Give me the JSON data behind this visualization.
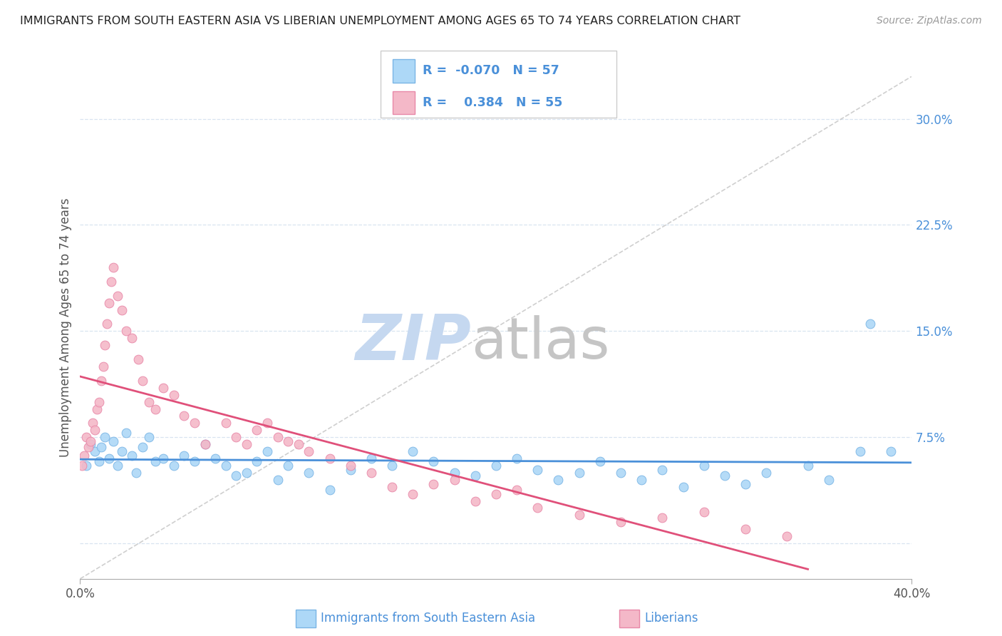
{
  "title": "IMMIGRANTS FROM SOUTH EASTERN ASIA VS LIBERIAN UNEMPLOYMENT AMONG AGES 65 TO 74 YEARS CORRELATION CHART",
  "source": "Source: ZipAtlas.com",
  "ylabel": "Unemployment Among Ages 65 to 74 years",
  "xlim": [
    0.0,
    40.0
  ],
  "ylim": [
    -2.5,
    33.0
  ],
  "y_ticks_right": [
    0.0,
    7.5,
    15.0,
    22.5,
    30.0
  ],
  "y_tick_labels_right": [
    "",
    "7.5%",
    "15.0%",
    "22.5%",
    "30.0%"
  ],
  "legend_r1": "-0.070",
  "legend_n1": "57",
  "legend_r2": "0.384",
  "legend_n2": "55",
  "series1_color": "#add8f7",
  "series1_edge": "#7ab5e5",
  "series2_color": "#f4b8c8",
  "series2_edge": "#e888a8",
  "trend1_color": "#4a90d9",
  "trend2_color": "#e0507a",
  "diagonal_color": "#bbbbbb",
  "watermark_zip_color": "#c5d8f0",
  "watermark_atlas_color": "#c5c5c5",
  "background_color": "#ffffff",
  "grid_color": "#d8e4f0",
  "series1_x": [
    0.3,
    0.5,
    0.7,
    0.9,
    1.0,
    1.2,
    1.4,
    1.6,
    1.8,
    2.0,
    2.2,
    2.5,
    2.7,
    3.0,
    3.3,
    3.6,
    4.0,
    4.5,
    5.0,
    5.5,
    6.0,
    6.5,
    7.0,
    7.5,
    8.0,
    8.5,
    9.0,
    9.5,
    10.0,
    11.0,
    12.0,
    13.0,
    14.0,
    15.0,
    16.0,
    17.0,
    18.0,
    19.0,
    20.0,
    21.0,
    22.0,
    23.0,
    24.0,
    25.0,
    26.0,
    27.0,
    28.0,
    29.0,
    30.0,
    31.0,
    32.0,
    33.0,
    35.0,
    36.0,
    37.5,
    38.0,
    39.0
  ],
  "series1_y": [
    5.5,
    7.0,
    6.5,
    5.8,
    6.8,
    7.5,
    6.0,
    7.2,
    5.5,
    6.5,
    7.8,
    6.2,
    5.0,
    6.8,
    7.5,
    5.8,
    6.0,
    5.5,
    6.2,
    5.8,
    7.0,
    6.0,
    5.5,
    4.8,
    5.0,
    5.8,
    6.5,
    4.5,
    5.5,
    5.0,
    3.8,
    5.2,
    6.0,
    5.5,
    6.5,
    5.8,
    5.0,
    4.8,
    5.5,
    6.0,
    5.2,
    4.5,
    5.0,
    5.8,
    5.0,
    4.5,
    5.2,
    4.0,
    5.5,
    4.8,
    4.2,
    5.0,
    5.5,
    4.5,
    6.5,
    15.5,
    6.5
  ],
  "series2_x": [
    0.1,
    0.2,
    0.3,
    0.4,
    0.5,
    0.6,
    0.7,
    0.8,
    0.9,
    1.0,
    1.1,
    1.2,
    1.3,
    1.4,
    1.5,
    1.6,
    1.8,
    2.0,
    2.2,
    2.5,
    2.8,
    3.0,
    3.3,
    3.6,
    4.0,
    4.5,
    5.0,
    5.5,
    6.0,
    7.0,
    7.5,
    8.0,
    8.5,
    9.0,
    9.5,
    10.0,
    10.5,
    11.0,
    12.0,
    13.0,
    14.0,
    15.0,
    16.0,
    17.0,
    18.0,
    19.0,
    20.0,
    21.0,
    22.0,
    24.0,
    26.0,
    28.0,
    30.0,
    32.0,
    34.0
  ],
  "series2_y": [
    5.5,
    6.2,
    7.5,
    6.8,
    7.2,
    8.5,
    8.0,
    9.5,
    10.0,
    11.5,
    12.5,
    14.0,
    15.5,
    17.0,
    18.5,
    19.5,
    17.5,
    16.5,
    15.0,
    14.5,
    13.0,
    11.5,
    10.0,
    9.5,
    11.0,
    10.5,
    9.0,
    8.5,
    7.0,
    8.5,
    7.5,
    7.0,
    8.0,
    8.5,
    7.5,
    7.2,
    7.0,
    6.5,
    6.0,
    5.5,
    5.0,
    4.0,
    3.5,
    4.2,
    4.5,
    3.0,
    3.5,
    3.8,
    2.5,
    2.0,
    1.5,
    1.8,
    2.2,
    1.0,
    0.5
  ]
}
